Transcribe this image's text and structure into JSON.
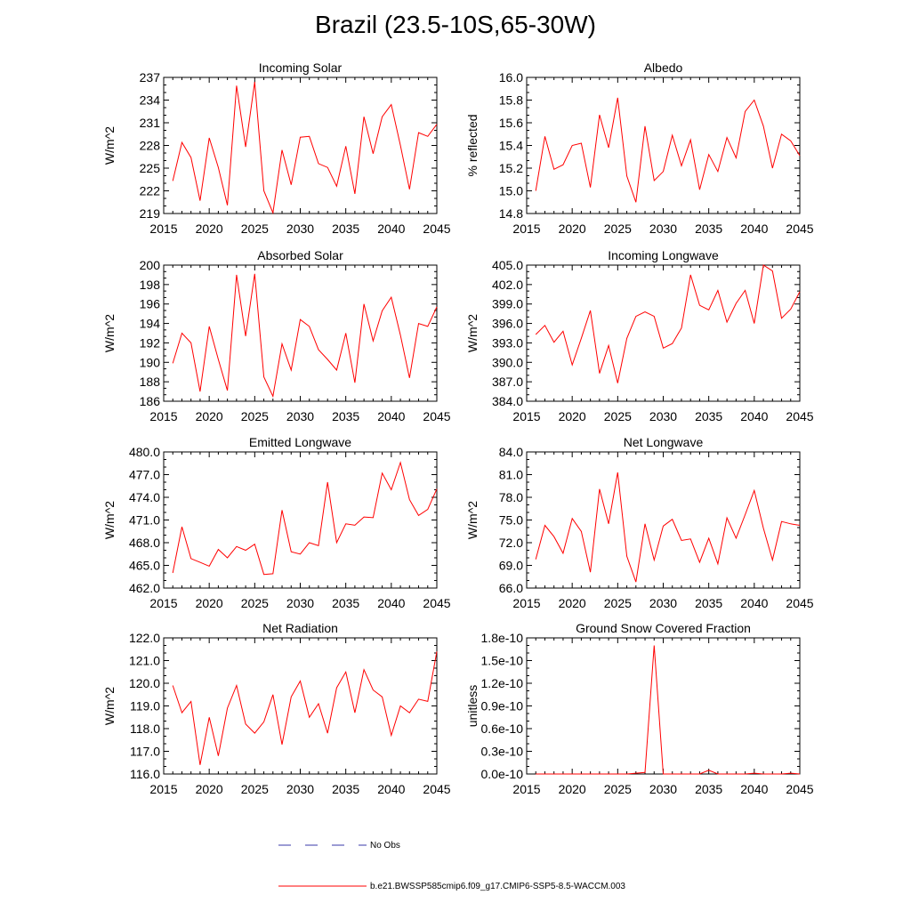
{
  "title": "Brazil (23.5-10S,65-30W)",
  "colors": {
    "model_line": "#ff0000",
    "obs_line": "#3a3aa8",
    "axis": "#000000"
  },
  "legend": {
    "obs_label": "No Obs",
    "model_label": "b.e21.BWSSP585cmip6.f09_g17.CMIP6-SSP5-8.5-WACCM.003"
  },
  "chart_data": [
    {
      "type": "line",
      "title": "Incoming Solar",
      "ylabel": "W/m^2",
      "xlim": [
        2015,
        2045
      ],
      "ylim": [
        219,
        237
      ],
      "xticks": [
        2015,
        2020,
        2025,
        2030,
        2035,
        2040,
        2045
      ],
      "yticks": [
        219,
        222,
        225,
        228,
        231,
        234,
        237
      ],
      "ytick_labels": [
        "219",
        "222",
        "225",
        "228",
        "231",
        "234",
        "237"
      ],
      "x": [
        2016,
        2017,
        2018,
        2019,
        2020,
        2021,
        2022,
        2023,
        2024,
        2025,
        2026,
        2027,
        2028,
        2029,
        2030,
        2031,
        2032,
        2033,
        2034,
        2035,
        2036,
        2037,
        2038,
        2039,
        2040,
        2041,
        2042,
        2043,
        2044,
        2045
      ],
      "series": [
        {
          "name": "b.e21.BWSSP585cmip6.f09_g17.CMIP6-SSP5-8.5-WACCM.003",
          "values": [
            223.3,
            228.4,
            226.4,
            220.7,
            229.0,
            225.1,
            220.1,
            235.9,
            227.8,
            236.4,
            222.0,
            219.1,
            227.4,
            222.8,
            229.1,
            229.2,
            225.6,
            225.1,
            222.6,
            227.9,
            221.6,
            231.8,
            226.9,
            231.8,
            233.4,
            228.0,
            222.2,
            229.7,
            229.2,
            230.8
          ]
        }
      ]
    },
    {
      "type": "line",
      "title": "Albedo",
      "ylabel": "% reflected",
      "xlim": [
        2015,
        2045
      ],
      "ylim": [
        14.8,
        16.0
      ],
      "xticks": [
        2015,
        2020,
        2025,
        2030,
        2035,
        2040,
        2045
      ],
      "yticks": [
        14.8,
        15.0,
        15.2,
        15.4,
        15.6,
        15.8,
        16.0
      ],
      "ytick_labels": [
        "14.8",
        "15.0",
        "15.2",
        "15.4",
        "15.6",
        "15.8",
        "16.0"
      ],
      "x": [
        2016,
        2017,
        2018,
        2019,
        2020,
        2021,
        2022,
        2023,
        2024,
        2025,
        2026,
        2027,
        2028,
        2029,
        2030,
        2031,
        2032,
        2033,
        2034,
        2035,
        2036,
        2037,
        2038,
        2039,
        2040,
        2041,
        2042,
        2043,
        2044,
        2045
      ],
      "series": [
        {
          "name": "b.e21.BWSSP585cmip6.f09_g17.CMIP6-SSP5-8.5-WACCM.003",
          "values": [
            15.0,
            15.48,
            15.19,
            15.23,
            15.4,
            15.42,
            15.03,
            15.67,
            15.38,
            15.82,
            15.13,
            14.9,
            15.57,
            15.09,
            15.17,
            15.49,
            15.22,
            15.45,
            15.01,
            15.32,
            15.17,
            15.47,
            15.29,
            15.7,
            15.8,
            15.57,
            15.2,
            15.5,
            15.44,
            15.31
          ]
        }
      ]
    },
    {
      "type": "line",
      "title": "Absorbed Solar",
      "ylabel": "W/m^2",
      "xlim": [
        2015,
        2045
      ],
      "ylim": [
        186,
        200
      ],
      "xticks": [
        2015,
        2020,
        2025,
        2030,
        2035,
        2040,
        2045
      ],
      "yticks": [
        186,
        188,
        190,
        192,
        194,
        196,
        198,
        200
      ],
      "ytick_labels": [
        "186",
        "188",
        "190",
        "192",
        "194",
        "196",
        "198",
        "200"
      ],
      "x": [
        2016,
        2017,
        2018,
        2019,
        2020,
        2021,
        2022,
        2023,
        2024,
        2025,
        2026,
        2027,
        2028,
        2029,
        2030,
        2031,
        2032,
        2033,
        2034,
        2035,
        2036,
        2037,
        2038,
        2039,
        2040,
        2041,
        2042,
        2043,
        2044,
        2045
      ],
      "series": [
        {
          "name": "b.e21.BWSSP585cmip6.f09_g17.CMIP6-SSP5-8.5-WACCM.003",
          "values": [
            189.9,
            193.0,
            192.0,
            187.0,
            193.7,
            190.3,
            187.1,
            199.0,
            192.7,
            199.1,
            188.5,
            186.5,
            191.9,
            189.2,
            194.4,
            193.7,
            191.3,
            190.3,
            189.2,
            193.0,
            187.9,
            196.0,
            192.2,
            195.3,
            196.7,
            192.8,
            188.4,
            194.0,
            193.7,
            195.7
          ]
        }
      ]
    },
    {
      "type": "line",
      "title": "Incoming Longwave",
      "ylabel": "W/m^2",
      "xlim": [
        2015,
        2045
      ],
      "ylim": [
        384.0,
        405.0
      ],
      "xticks": [
        2015,
        2020,
        2025,
        2030,
        2035,
        2040,
        2045
      ],
      "yticks": [
        384.0,
        387.0,
        390.0,
        393.0,
        396.0,
        399.0,
        402.0,
        405.0
      ],
      "ytick_labels": [
        "384.0",
        "387.0",
        "390.0",
        "393.0",
        "396.0",
        "399.0",
        "402.0",
        "405.0"
      ],
      "x": [
        2016,
        2017,
        2018,
        2019,
        2020,
        2021,
        2022,
        2023,
        2024,
        2025,
        2026,
        2027,
        2028,
        2029,
        2030,
        2031,
        2032,
        2033,
        2034,
        2035,
        2036,
        2037,
        2038,
        2039,
        2040,
        2041,
        2042,
        2043,
        2044,
        2045
      ],
      "series": [
        {
          "name": "b.e21.BWSSP585cmip6.f09_g17.CMIP6-SSP5-8.5-WACCM.003",
          "values": [
            394.3,
            395.7,
            393.1,
            394.8,
            389.6,
            393.7,
            398.0,
            388.3,
            392.6,
            386.8,
            393.7,
            397.1,
            397.8,
            397.1,
            392.2,
            392.9,
            395.3,
            403.5,
            398.8,
            398.1,
            401.1,
            396.2,
            399.1,
            401.1,
            396.0,
            405.0,
            404.1,
            396.8,
            398.2,
            400.9
          ]
        }
      ]
    },
    {
      "type": "line",
      "title": "Emitted Longwave",
      "ylabel": "W/m^2",
      "xlim": [
        2015,
        2045
      ],
      "ylim": [
        462.0,
        480.0
      ],
      "xticks": [
        2015,
        2020,
        2025,
        2030,
        2035,
        2040,
        2045
      ],
      "yticks": [
        462.0,
        465.0,
        468.0,
        471.0,
        474.0,
        477.0,
        480.0
      ],
      "ytick_labels": [
        "462.0",
        "465.0",
        "468.0",
        "471.0",
        "474.0",
        "477.0",
        "480.0"
      ],
      "x": [
        2016,
        2017,
        2018,
        2019,
        2020,
        2021,
        2022,
        2023,
        2024,
        2025,
        2026,
        2027,
        2028,
        2029,
        2030,
        2031,
        2032,
        2033,
        2034,
        2035,
        2036,
        2037,
        2038,
        2039,
        2040,
        2041,
        2042,
        2043,
        2044,
        2045
      ],
      "series": [
        {
          "name": "b.e21.BWSSP585cmip6.f09_g17.CMIP6-SSP5-8.5-WACCM.003",
          "values": [
            464.0,
            470.1,
            465.9,
            465.4,
            464.9,
            467.1,
            466.0,
            467.5,
            467.0,
            467.8,
            463.8,
            463.9,
            472.3,
            466.8,
            466.5,
            468.0,
            467.6,
            476.0,
            468.0,
            470.5,
            470.3,
            471.4,
            471.3,
            477.2,
            475.0,
            478.6,
            473.7,
            471.6,
            472.4,
            475.1
          ]
        }
      ]
    },
    {
      "type": "line",
      "title": "Net Longwave",
      "ylabel": "W/m^2",
      "xlim": [
        2015,
        2045
      ],
      "ylim": [
        66.0,
        84.0
      ],
      "xticks": [
        2015,
        2020,
        2025,
        2030,
        2035,
        2040,
        2045
      ],
      "yticks": [
        66.0,
        69.0,
        72.0,
        75.0,
        78.0,
        81.0,
        84.0
      ],
      "ytick_labels": [
        "66.0",
        "69.0",
        "72.0",
        "75.0",
        "78.0",
        "81.0",
        "84.0"
      ],
      "x": [
        2016,
        2017,
        2018,
        2019,
        2020,
        2021,
        2022,
        2023,
        2024,
        2025,
        2026,
        2027,
        2028,
        2029,
        2030,
        2031,
        2032,
        2033,
        2034,
        2035,
        2036,
        2037,
        2038,
        2039,
        2040,
        2041,
        2042,
        2043,
        2044,
        2045
      ],
      "series": [
        {
          "name": "b.e21.BWSSP585cmip6.f09_g17.CMIP6-SSP5-8.5-WACCM.003",
          "values": [
            69.8,
            74.3,
            72.8,
            70.6,
            75.2,
            73.5,
            68.1,
            79.1,
            74.5,
            81.3,
            70.2,
            66.8,
            74.5,
            69.7,
            74.2,
            75.1,
            72.3,
            72.5,
            69.4,
            72.6,
            69.2,
            75.3,
            72.6,
            75.7,
            78.9,
            73.9,
            69.7,
            74.8,
            74.5,
            74.3
          ]
        }
      ]
    },
    {
      "type": "line",
      "title": "Net Radiation",
      "ylabel": "W/m^2",
      "xlim": [
        2015,
        2045
      ],
      "ylim": [
        116.0,
        122.0
      ],
      "xticks": [
        2015,
        2020,
        2025,
        2030,
        2035,
        2040,
        2045
      ],
      "yticks": [
        116.0,
        117.0,
        118.0,
        119.0,
        120.0,
        121.0,
        122.0
      ],
      "ytick_labels": [
        "116.0",
        "117.0",
        "118.0",
        "119.0",
        "120.0",
        "121.0",
        "122.0"
      ],
      "x": [
        2016,
        2017,
        2018,
        2019,
        2020,
        2021,
        2022,
        2023,
        2024,
        2025,
        2026,
        2027,
        2028,
        2029,
        2030,
        2031,
        2032,
        2033,
        2034,
        2035,
        2036,
        2037,
        2038,
        2039,
        2040,
        2041,
        2042,
        2043,
        2044,
        2045
      ],
      "series": [
        {
          "name": "b.e21.BWSSP585cmip6.f09_g17.CMIP6-SSP5-8.5-WACCM.003",
          "values": [
            119.9,
            118.7,
            119.2,
            116.4,
            118.5,
            116.8,
            118.9,
            119.9,
            118.2,
            117.8,
            118.3,
            119.5,
            117.3,
            119.4,
            120.1,
            118.5,
            119.1,
            117.8,
            119.8,
            120.5,
            118.7,
            120.6,
            119.7,
            119.4,
            117.7,
            119.0,
            118.7,
            119.3,
            119.2,
            121.4
          ]
        }
      ]
    },
    {
      "type": "line",
      "title": "Ground Snow Covered Fraction",
      "ylabel": "unitless",
      "xlim": [
        2015,
        2045
      ],
      "ylim": [
        0,
        1.8e-10
      ],
      "xticks": [
        2015,
        2020,
        2025,
        2030,
        2035,
        2040,
        2045
      ],
      "yticks": [
        0,
        3e-11,
        6e-11,
        9e-11,
        1.2e-10,
        1.5e-10,
        1.8e-10
      ],
      "ytick_labels": [
        "0.0e-10",
        "0.3e-10",
        "0.6e-10",
        "0.9e-10",
        "1.2e-10",
        "1.5e-10",
        "1.8e-10"
      ],
      "x": [
        2016,
        2017,
        2018,
        2019,
        2020,
        2021,
        2022,
        2023,
        2024,
        2025,
        2026,
        2027,
        2028,
        2029,
        2030,
        2031,
        2032,
        2033,
        2034,
        2035,
        2036,
        2037,
        2038,
        2039,
        2040,
        2041,
        2042,
        2043,
        2044,
        2045
      ],
      "series": [
        {
          "name": "b.e21.BWSSP585cmip6.f09_g17.CMIP6-SSP5-8.5-WACCM.003",
          "values": [
            0,
            0,
            0,
            0,
            0,
            0,
            0,
            0,
            0,
            0,
            0.0,
            1e-12,
            2e-12,
            1.7e-10,
            0,
            0,
            0,
            0,
            0,
            5e-12,
            0,
            0,
            0,
            0,
            1e-12,
            0,
            0,
            0,
            1e-12,
            0
          ]
        }
      ]
    }
  ]
}
